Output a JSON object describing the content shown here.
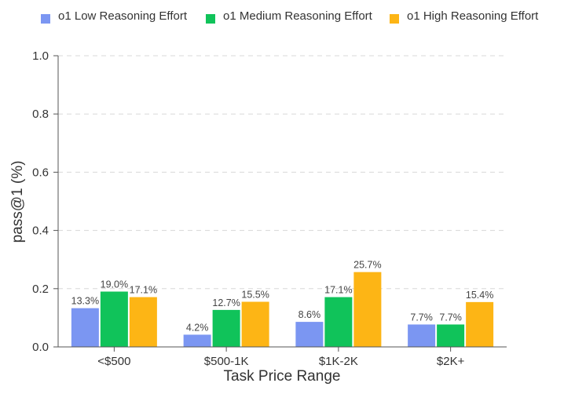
{
  "chart_data": {
    "type": "bar",
    "title": "",
    "xlabel": "Task Price Range",
    "ylabel": "pass@1 (%)",
    "ylim": [
      0,
      1.0
    ],
    "yticks": [
      "0.0",
      "0.2",
      "0.4",
      "0.6",
      "0.8",
      "1.0"
    ],
    "grid": "horizontal-dashed",
    "legend_position": "top",
    "categories": [
      "<$500",
      "$500-1K",
      "$1K-2K",
      "$2K+"
    ],
    "series": [
      {
        "name": "o1 Low Reasoning Effort",
        "color": "#7b96f2",
        "values": [
          0.133,
          0.042,
          0.086,
          0.077
        ],
        "labels": [
          "13.3%",
          "4.2%",
          "8.6%",
          "7.7%"
        ]
      },
      {
        "name": "o1 Medium Reasoning Effort",
        "color": "#10c35a",
        "values": [
          0.19,
          0.127,
          0.171,
          0.077
        ],
        "labels": [
          "19.0%",
          "12.7%",
          "17.1%",
          "7.7%"
        ]
      },
      {
        "name": "o1 High Reasoning Effort",
        "color": "#fdb515",
        "values": [
          0.171,
          0.155,
          0.257,
          0.154
        ],
        "labels": [
          "17.1%",
          "15.5%",
          "25.7%",
          "15.4%"
        ]
      }
    ]
  }
}
